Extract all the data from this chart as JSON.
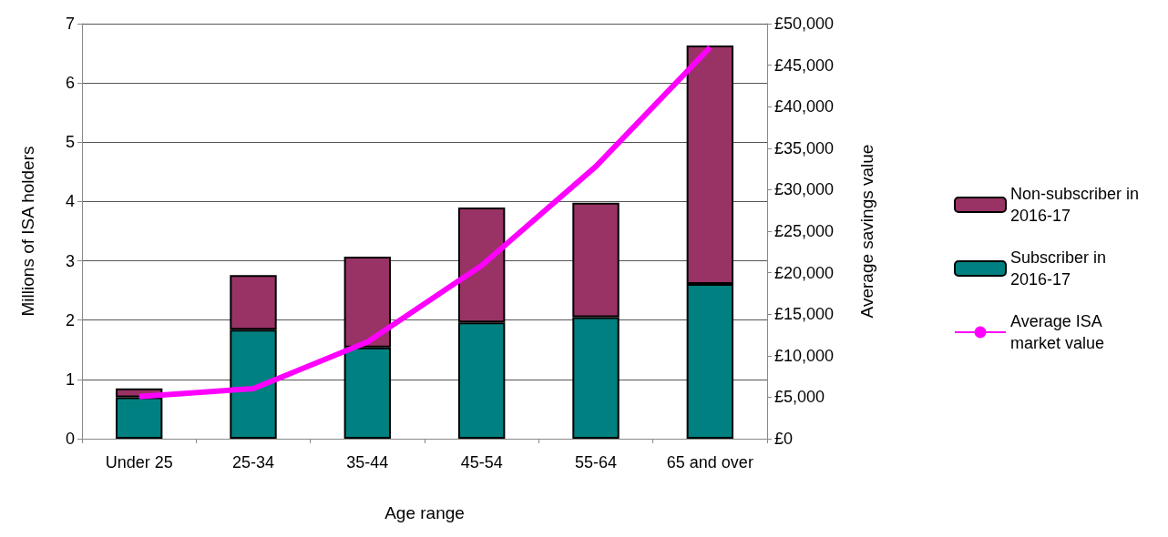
{
  "chart_data": {
    "type": "bar",
    "stacked": true,
    "xlabel": "Age range",
    "ylabel": "Millions of ISA holders",
    "y2label": "Average savings value",
    "categories": [
      "Under 25",
      "25-34",
      "35-44",
      "45-54",
      "55-64",
      "65 and over"
    ],
    "series": [
      {
        "name": "Subscriber in 2016-17",
        "color": "#008080",
        "values": [
          0.7,
          1.84,
          1.54,
          1.96,
          2.05,
          2.61
        ]
      },
      {
        "name": "Non-subscriber in 2016-17",
        "color": "#993366",
        "values": [
          0.15,
          0.92,
          1.53,
          1.94,
          1.93,
          4.02
        ]
      },
      {
        "name": "Average ISA market value",
        "type": "line",
        "axis": "y2",
        "color": "#ff00ff",
        "marker": "none",
        "values": [
          5080,
          6040,
          11650,
          20870,
          32800,
          47140
        ]
      }
    ],
    "ylim": [
      0,
      7
    ],
    "yticks": [
      0,
      1,
      2,
      3,
      4,
      5,
      6,
      7
    ],
    "y2lim": [
      0,
      50000
    ],
    "y2ticks": [
      {
        "value": 0,
        "label": "£0"
      },
      {
        "value": 5000,
        "label": "£5,000"
      },
      {
        "value": 10000,
        "label": "£10,000"
      },
      {
        "value": 15000,
        "label": "£15,000"
      },
      {
        "value": 20000,
        "label": "£20,000"
      },
      {
        "value": 25000,
        "label": "£25,000"
      },
      {
        "value": 30000,
        "label": "£30,000"
      },
      {
        "value": 35000,
        "label": "£35,000"
      },
      {
        "value": 40000,
        "label": "£40,000"
      },
      {
        "value": 45000,
        "label": "£45,000"
      },
      {
        "value": 50000,
        "label": "£50,000"
      }
    ],
    "grid": "y",
    "legend": "right"
  }
}
